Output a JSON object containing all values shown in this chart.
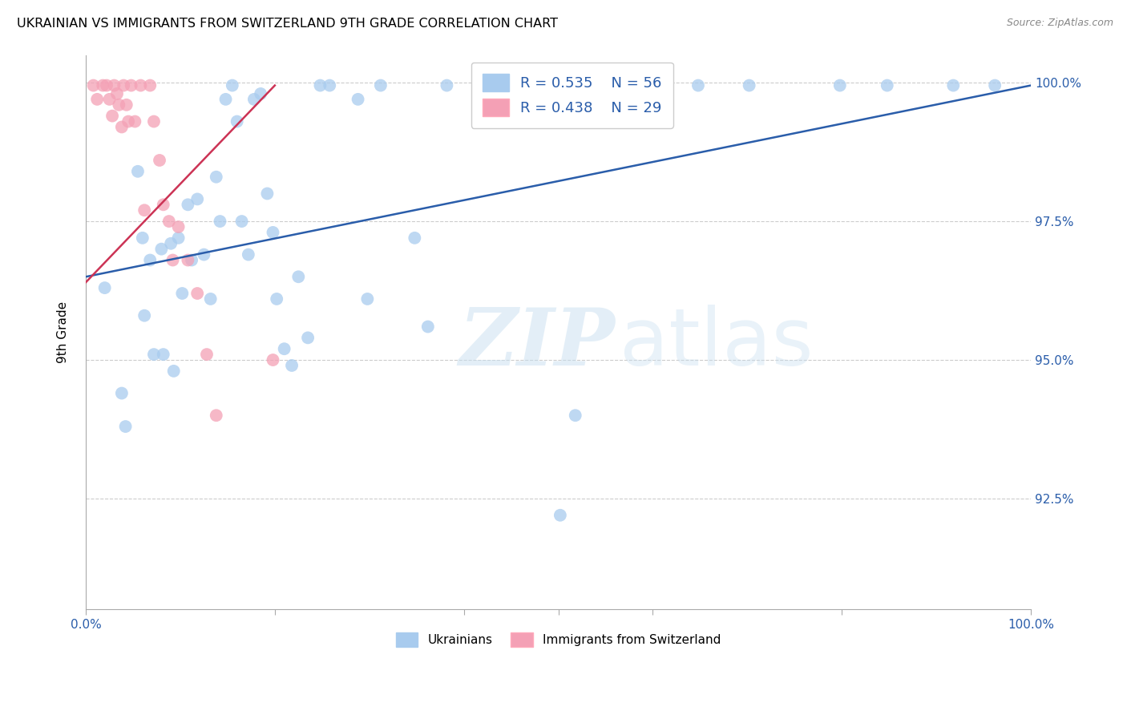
{
  "title": "UKRAINIAN VS IMMIGRANTS FROM SWITZERLAND 9TH GRADE CORRELATION CHART",
  "source": "Source: ZipAtlas.com",
  "ylabel": "9th Grade",
  "xlim": [
    0.0,
    1.0
  ],
  "ylim": [
    0.905,
    1.005
  ],
  "yticks": [
    0.925,
    0.95,
    0.975,
    1.0
  ],
  "ytick_labels": [
    "92.5%",
    "95.0%",
    "97.5%",
    "100.0%"
  ],
  "legend_blue_r": "R = 0.535",
  "legend_blue_n": "N = 56",
  "legend_pink_r": "R = 0.438",
  "legend_pink_n": "N = 29",
  "blue_color": "#A8CBEE",
  "pink_color": "#F4A0B5",
  "blue_line_color": "#2A5DAA",
  "pink_line_color": "#CC3355",
  "legend_label_blue": "Ukrainians",
  "legend_label_pink": "Immigrants from Switzerland",
  "blue_points_x": [
    0.02,
    0.038,
    0.042,
    0.055,
    0.06,
    0.062,
    0.068,
    0.072,
    0.08,
    0.082,
    0.09,
    0.093,
    0.098,
    0.102,
    0.108,
    0.112,
    0.118,
    0.125,
    0.132,
    0.138,
    0.142,
    0.148,
    0.155,
    0.16,
    0.165,
    0.172,
    0.178,
    0.185,
    0.192,
    0.198,
    0.202,
    0.21,
    0.218,
    0.225,
    0.235,
    0.248,
    0.258,
    0.288,
    0.298,
    0.312,
    0.348,
    0.362,
    0.382,
    0.422,
    0.462,
    0.482,
    0.502,
    0.518,
    0.542,
    0.598,
    0.648,
    0.702,
    0.798,
    0.848,
    0.918,
    0.962
  ],
  "blue_points_y": [
    0.963,
    0.944,
    0.938,
    0.984,
    0.972,
    0.958,
    0.968,
    0.951,
    0.97,
    0.951,
    0.971,
    0.948,
    0.972,
    0.962,
    0.978,
    0.968,
    0.979,
    0.969,
    0.961,
    0.983,
    0.975,
    0.997,
    0.9995,
    0.993,
    0.975,
    0.969,
    0.997,
    0.998,
    0.98,
    0.973,
    0.961,
    0.952,
    0.949,
    0.965,
    0.954,
    0.9995,
    0.9995,
    0.997,
    0.961,
    0.9995,
    0.972,
    0.956,
    0.9995,
    0.9995,
    0.9995,
    0.9995,
    0.922,
    0.94,
    0.9995,
    0.9995,
    0.9995,
    0.9995,
    0.9995,
    0.9995,
    0.9995,
    0.9995
  ],
  "pink_points_x": [
    0.008,
    0.012,
    0.018,
    0.022,
    0.025,
    0.028,
    0.03,
    0.033,
    0.035,
    0.038,
    0.04,
    0.043,
    0.045,
    0.048,
    0.052,
    0.058,
    0.062,
    0.068,
    0.072,
    0.078,
    0.082,
    0.088,
    0.092,
    0.098,
    0.108,
    0.118,
    0.128,
    0.138,
    0.198
  ],
  "pink_points_y": [
    0.9995,
    0.997,
    0.9995,
    0.9995,
    0.997,
    0.994,
    0.9995,
    0.998,
    0.996,
    0.992,
    0.9995,
    0.996,
    0.993,
    0.9995,
    0.993,
    0.9995,
    0.977,
    0.9995,
    0.993,
    0.986,
    0.978,
    0.975,
    0.968,
    0.974,
    0.968,
    0.962,
    0.951,
    0.94,
    0.95
  ],
  "blue_trend_x": [
    0.0,
    1.0
  ],
  "blue_trend_y": [
    0.965,
    0.9995
  ],
  "pink_trend_x": [
    0.0,
    0.2
  ],
  "pink_trend_y": [
    0.964,
    0.9995
  ],
  "watermark_zip": "ZIP",
  "watermark_atlas": "atlas",
  "background_color": "#FFFFFF",
  "grid_color": "#CCCCCC"
}
